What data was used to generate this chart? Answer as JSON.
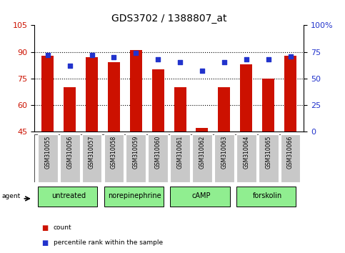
{
  "title": "GDS3702 / 1388807_at",
  "samples": [
    "GSM310055",
    "GSM310056",
    "GSM310057",
    "GSM310058",
    "GSM310059",
    "GSM310060",
    "GSM310061",
    "GSM310062",
    "GSM310063",
    "GSM310064",
    "GSM310065",
    "GSM310066"
  ],
  "count_values": [
    88,
    70,
    87,
    84,
    91,
    80,
    70,
    47,
    70,
    83,
    75,
    88
  ],
  "percentile_values": [
    72,
    62,
    72,
    70,
    74,
    68,
    65,
    57,
    65,
    68,
    68,
    71
  ],
  "ylim_left": [
    45,
    105
  ],
  "ylim_right": [
    0,
    100
  ],
  "yticks_left": [
    45,
    60,
    75,
    90,
    105
  ],
  "yticks_right": [
    0,
    25,
    50,
    75,
    100
  ],
  "ytick_labels_right": [
    "0",
    "25",
    "50",
    "75",
    "100%"
  ],
  "bar_color": "#cc1100",
  "dot_color": "#2233cc",
  "bar_bottom": 45,
  "agents": [
    {
      "label": "untreated",
      "start": 0,
      "end": 3
    },
    {
      "label": "norepinephrine",
      "start": 3,
      "end": 6
    },
    {
      "label": "cAMP",
      "start": 6,
      "end": 9
    },
    {
      "label": "forskolin",
      "start": 9,
      "end": 12
    }
  ],
  "agent_color_light": "#90EE90",
  "tick_bg_color": "#c8c8c8",
  "legend_count_color": "#cc1100",
  "legend_pct_color": "#2233cc",
  "title_fontsize": 10,
  "tick_fontsize": 7,
  "agent_fontsize": 8,
  "label_fontsize": 7
}
